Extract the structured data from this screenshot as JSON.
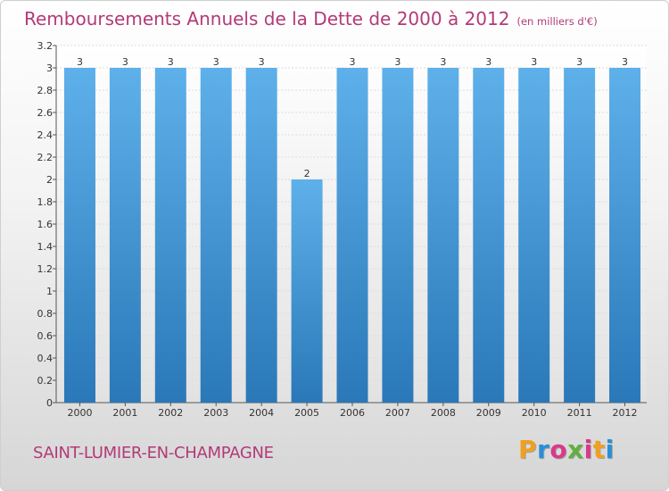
{
  "title": "Remboursements Annuels de la Dette de 2000 à 2012",
  "unit_note": "(en milliers d'€)",
  "commune": "SAINT-LUMIER-EN-CHAMPAGNE",
  "logo": "Proxiti",
  "colors": {
    "title": "#b23a78",
    "bar_top": "#5eb0ea",
    "bar_bottom": "#2a78b8",
    "logo_letters": [
      "#f0a020",
      "#2a8fd8",
      "#d83a8a",
      "#60b040",
      "#d83a8a",
      "#f0a020",
      "#2a8fd8"
    ]
  },
  "chart_data": {
    "type": "bar",
    "categories": [
      "2000",
      "2001",
      "2002",
      "2003",
      "2004",
      "2005",
      "2006",
      "2007",
      "2008",
      "2009",
      "2010",
      "2011",
      "2012"
    ],
    "values": [
      3,
      3,
      3,
      3,
      3,
      2,
      3,
      3,
      3,
      3,
      3,
      3,
      3
    ],
    "data_labels": [
      "3",
      "3",
      "3",
      "3",
      "3",
      "2",
      "3",
      "3",
      "3",
      "3",
      "3",
      "3",
      "3"
    ],
    "ylim": [
      0,
      3.2
    ],
    "yticks": [
      "0",
      "0.2",
      "0.4",
      "0.6",
      "0.8",
      "1",
      "1.2",
      "1.4",
      "1.6",
      "1.8",
      "2",
      "2.2",
      "2.4",
      "2.6",
      "2.8",
      "3",
      "3.2"
    ],
    "grid": true
  }
}
